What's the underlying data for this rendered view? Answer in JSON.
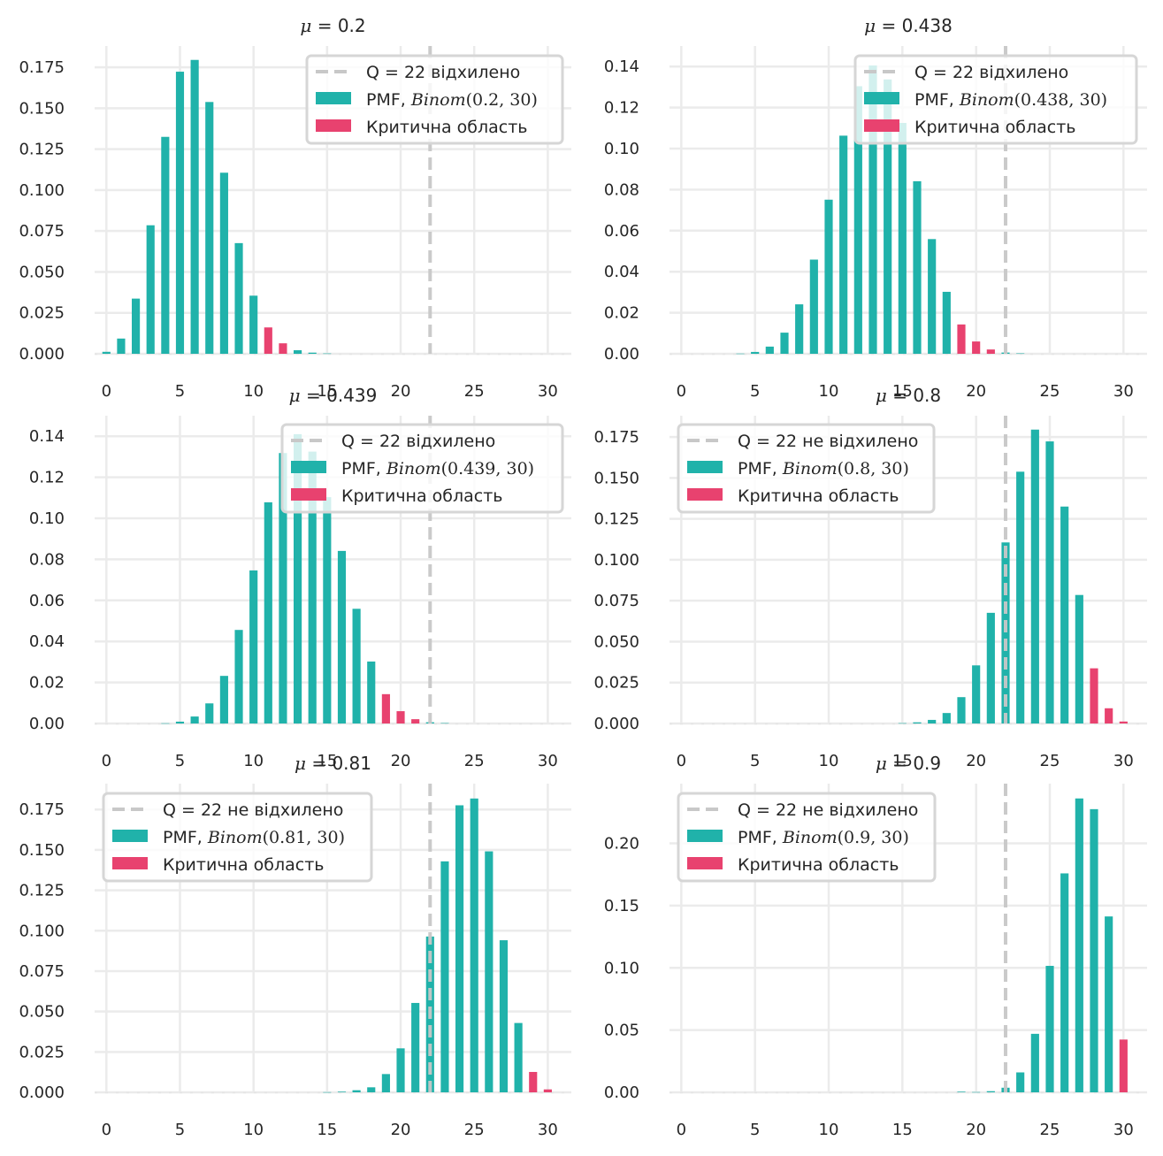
{
  "colors": {
    "pmf": "#20b2aa",
    "critical": "#e8426f",
    "qline": "#c8c8c8",
    "grid": "#ebebeb",
    "baseline": "#e4e4e4"
  },
  "chart_data": [
    {
      "type": "bar",
      "title_var": "μ",
      "title_value": "0.2",
      "q_label": "Q = 22 відхилено",
      "pmf_label_prefix": "PMF, ",
      "pmf_func": "Binom",
      "pmf_args": "(0.2, 30)",
      "crit_label": "Критична область",
      "legend_loc": "upper-right",
      "p": 0.2,
      "n": 30,
      "q": 22,
      "x": [
        0,
        1,
        2,
        3,
        4,
        5,
        6,
        7,
        8,
        9,
        10,
        11,
        12,
        13,
        14,
        15,
        16,
        17,
        18,
        19,
        20,
        21,
        22,
        23,
        24,
        25,
        26,
        27,
        28,
        29,
        30
      ],
      "values": [
        0.0012,
        0.0093,
        0.0337,
        0.0785,
        0.1325,
        0.1723,
        0.1795,
        0.1538,
        0.1106,
        0.0676,
        0.0355,
        0.0161,
        0.0064,
        0.0022,
        0.0007,
        0.0002,
        0,
        0,
        0,
        0,
        0,
        0,
        0,
        0,
        0,
        0,
        0,
        0,
        0,
        0,
        0
      ],
      "critical": [
        11,
        12
      ],
      "xticks": [
        0,
        5,
        10,
        15,
        20,
        25,
        30
      ],
      "yticks": [
        "0.000",
        "0.025",
        "0.050",
        "0.075",
        "0.100",
        "0.125",
        "0.150",
        "0.175"
      ],
      "ylim": [
        0,
        0.188
      ],
      "xlim": [
        -0.8,
        31.6
      ],
      "grid": true
    },
    {
      "type": "bar",
      "title_var": "μ",
      "title_value": "0.438",
      "q_label": "Q = 22 відхилено",
      "pmf_label_prefix": "PMF, ",
      "pmf_func": "Binom",
      "pmf_args": "(0.438, 30)",
      "crit_label": "Критична область",
      "legend_loc": "upper-right",
      "p": 0.438,
      "n": 30,
      "q": 22,
      "x": [
        0,
        1,
        2,
        3,
        4,
        5,
        6,
        7,
        8,
        9,
        10,
        11,
        12,
        13,
        14,
        15,
        16,
        17,
        18,
        19,
        20,
        21,
        22,
        23,
        24,
        25,
        26,
        27,
        28,
        29,
        30
      ],
      "values": [
        0,
        0,
        0,
        0,
        0.0001,
        0.0009,
        0.0035,
        0.0103,
        0.0241,
        0.0459,
        0.0751,
        0.1063,
        0.1304,
        0.1405,
        0.1337,
        0.1125,
        0.0841,
        0.0559,
        0.0302,
        0.0143,
        0.006,
        0.0021,
        0.0006,
        0.0002,
        0,
        0,
        0,
        0,
        0,
        0,
        0
      ],
      "critical": [
        19,
        20,
        21
      ],
      "xticks": [
        0,
        5,
        10,
        15,
        20,
        25,
        30
      ],
      "yticks": [
        "0.00",
        "0.02",
        "0.04",
        "0.06",
        "0.08",
        "0.10",
        "0.12",
        "0.14"
      ],
      "ylim": [
        0,
        0.15
      ],
      "xlim": [
        -0.8,
        31.6
      ],
      "grid": true
    },
    {
      "type": "bar",
      "title_var": "μ",
      "title_value": "0.439",
      "q_label": "Q = 22 відхилено",
      "pmf_label_prefix": "PMF, ",
      "pmf_func": "Binom",
      "pmf_args": "(0.439, 30)",
      "crit_label": "Критична область",
      "legend_loc": "upper-right",
      "p": 0.439,
      "n": 30,
      "q": 22,
      "x": [
        0,
        1,
        2,
        3,
        4,
        5,
        6,
        7,
        8,
        9,
        10,
        11,
        12,
        13,
        14,
        15,
        16,
        17,
        18,
        19,
        20,
        21,
        22,
        23,
        24,
        25,
        26,
        27,
        28,
        29,
        30
      ],
      "values": [
        0,
        0,
        0,
        0,
        0.0001,
        0.0009,
        0.0034,
        0.0098,
        0.0232,
        0.0456,
        0.0746,
        0.1078,
        0.1318,
        0.141,
        0.1325,
        0.1103,
        0.0841,
        0.0559,
        0.0302,
        0.0143,
        0.006,
        0.0021,
        0.0006,
        0.0002,
        0,
        0,
        0,
        0,
        0,
        0,
        0
      ],
      "critical": [
        19,
        20,
        21
      ],
      "xticks": [
        0,
        5,
        10,
        15,
        20,
        25,
        30
      ],
      "yticks": [
        "0.00",
        "0.02",
        "0.04",
        "0.06",
        "0.08",
        "0.10",
        "0.12",
        "0.14"
      ],
      "ylim": [
        0,
        0.15
      ],
      "xlim": [
        -0.8,
        31.6
      ],
      "grid": true
    },
    {
      "type": "bar",
      "title_var": "μ",
      "title_value": "0.8",
      "q_label": "Q = 22 не відхилено",
      "pmf_label_prefix": "PMF, ",
      "pmf_func": "Binom",
      "pmf_args": "(0.8, 30)",
      "crit_label": "Критична область",
      "legend_loc": "upper-left",
      "p": 0.8,
      "n": 30,
      "q": 22,
      "x": [
        0,
        1,
        2,
        3,
        4,
        5,
        6,
        7,
        8,
        9,
        10,
        11,
        12,
        13,
        14,
        15,
        16,
        17,
        18,
        19,
        20,
        21,
        22,
        23,
        24,
        25,
        26,
        27,
        28,
        29,
        30
      ],
      "values": [
        0,
        0,
        0,
        0,
        0,
        0,
        0,
        0,
        0,
        0,
        0,
        0,
        0,
        0,
        0,
        0.0002,
        0.0007,
        0.0022,
        0.0064,
        0.0161,
        0.0355,
        0.0676,
        0.1106,
        0.1538,
        0.1795,
        0.1723,
        0.1325,
        0.0785,
        0.0337,
        0.0093,
        0.0012
      ],
      "critical": [
        28,
        29,
        30
      ],
      "xticks": [
        0,
        5,
        10,
        15,
        20,
        25,
        30
      ],
      "yticks": [
        "0.000",
        "0.025",
        "0.050",
        "0.075",
        "0.100",
        "0.125",
        "0.150",
        "0.175"
      ],
      "ylim": [
        0,
        0.188
      ],
      "xlim": [
        -0.8,
        31.6
      ],
      "grid": true
    },
    {
      "type": "bar",
      "title_var": "μ",
      "title_value": "0.81",
      "q_label": "Q = 22 не відхилено",
      "pmf_label_prefix": "PMF, ",
      "pmf_func": "Binom",
      "pmf_args": "(0.81, 30)",
      "crit_label": "Критична область",
      "legend_loc": "upper-left",
      "p": 0.81,
      "n": 30,
      "q": 22,
      "x": [
        0,
        1,
        2,
        3,
        4,
        5,
        6,
        7,
        8,
        9,
        10,
        11,
        12,
        13,
        14,
        15,
        16,
        17,
        18,
        19,
        20,
        21,
        22,
        23,
        24,
        25,
        26,
        27,
        28,
        29,
        30
      ],
      "values": [
        0,
        0,
        0,
        0,
        0,
        0,
        0,
        0,
        0,
        0,
        0,
        0,
        0,
        0,
        0,
        0.0001,
        0.0004,
        0.0013,
        0.0031,
        0.0113,
        0.0272,
        0.0553,
        0.0964,
        0.1429,
        0.1776,
        0.1818,
        0.1491,
        0.0941,
        0.0429,
        0.0126,
        0.0018
      ],
      "critical": [
        29,
        30
      ],
      "xticks": [
        0,
        5,
        10,
        15,
        20,
        25,
        30
      ],
      "yticks": [
        "0.000",
        "0.025",
        "0.050",
        "0.075",
        "0.100",
        "0.125",
        "0.150",
        "0.175"
      ],
      "ylim": [
        0,
        0.191
      ],
      "xlim": [
        -0.8,
        31.6
      ],
      "grid": true
    },
    {
      "type": "bar",
      "title_var": "μ",
      "title_value": "0.9",
      "q_label": "Q = 22 не відхилено",
      "pmf_label_prefix": "PMF, ",
      "pmf_func": "Binom",
      "pmf_args": "(0.9, 30)",
      "crit_label": "Критична область",
      "legend_loc": "upper-left",
      "p": 0.9,
      "n": 30,
      "q": 22,
      "x": [
        0,
        1,
        2,
        3,
        4,
        5,
        6,
        7,
        8,
        9,
        10,
        11,
        12,
        13,
        14,
        15,
        16,
        17,
        18,
        19,
        20,
        21,
        22,
        23,
        24,
        25,
        26,
        27,
        28,
        29,
        30
      ],
      "values": [
        0,
        0,
        0,
        0,
        0,
        0,
        0,
        0,
        0,
        0,
        0,
        0,
        0,
        0,
        0,
        0,
        0,
        0,
        0,
        0.0005,
        0.0002,
        0.0009,
        0.0037,
        0.016,
        0.047,
        0.1016,
        0.1759,
        0.2361,
        0.2275,
        0.1413,
        0.0424
      ],
      "critical": [
        30
      ],
      "xticks": [
        0,
        5,
        10,
        15,
        20,
        25,
        30
      ],
      "yticks": [
        "0.00",
        "0.05",
        "0.10",
        "0.15",
        "0.20"
      ],
      "ylim": [
        0,
        0.248
      ],
      "xlim": [
        -0.8,
        31.6
      ],
      "grid": true
    }
  ]
}
